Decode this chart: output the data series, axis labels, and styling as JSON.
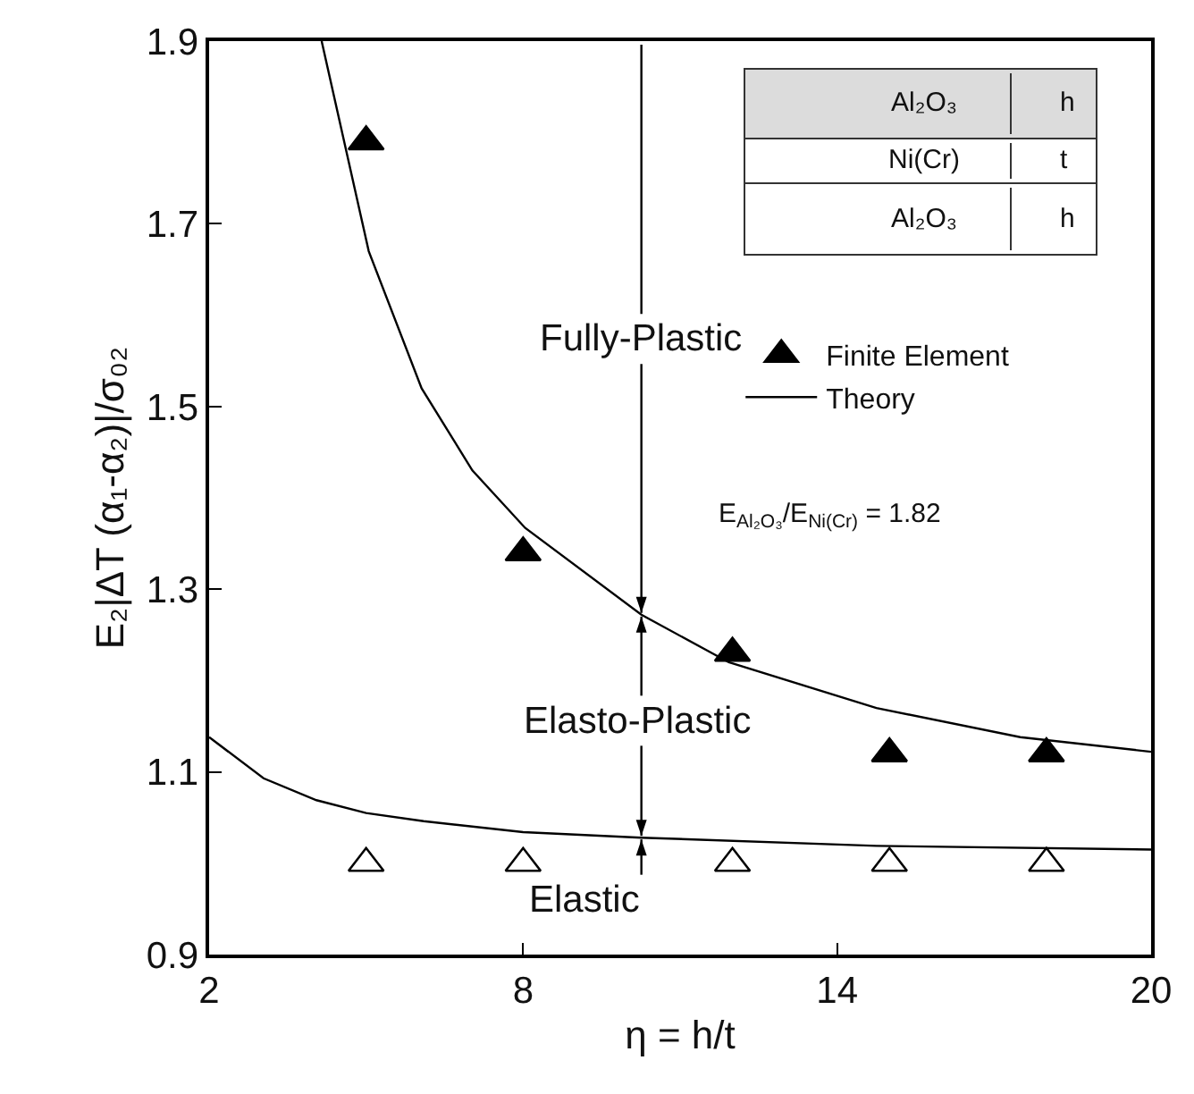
{
  "chart_data": {
    "type": "scatter",
    "xlabel": "η = h/t",
    "ylabel": "E₂|ΔT (α₁-α₂)|/σ₀₂",
    "xlim": [
      2,
      20
    ],
    "xticks": [
      2,
      8,
      14,
      20
    ],
    "ylim": [
      0.9,
      1.9
    ],
    "yticks": [
      0.9,
      1.1,
      1.3,
      1.5,
      1.7,
      1.9
    ],
    "grid": false,
    "legend": "right",
    "ref_lines": [
      {
        "axis": "x",
        "value": 10.26
      }
    ],
    "series": [
      {
        "name": "Finite Element",
        "color": "#000000",
        "marker": "triangle",
        "x": [
          5,
          8,
          12,
          15,
          18
        ],
        "values": [
          1.79,
          1.34,
          1.23,
          1.12,
          1.12
        ]
      },
      {
        "color": "#ffffff",
        "marker": "triangle",
        "x": [
          5,
          8,
          12,
          15,
          18
        ],
        "values": [
          1.0,
          1.0,
          1.0,
          1.0,
          1.0
        ]
      },
      {
        "type": "line",
        "name": "Theory",
        "color": "#000000",
        "line_style": "solid",
        "x": [
          4.15,
          5.05,
          6.06,
          7.03,
          8.04,
          10.26,
          11.93,
          14.75,
          17.5,
          20
        ],
        "values": [
          1.9,
          1.67,
          1.52,
          1.43,
          1.367,
          1.272,
          1.22,
          1.17,
          1.138,
          1.122
        ]
      },
      {
        "type": "line",
        "color": "#000000",
        "line_style": "solid",
        "x": [
          2,
          3.04,
          4.05,
          5.0,
          6.1,
          8.0,
          10.26,
          14.75,
          20
        ],
        "values": [
          1.138,
          1.093,
          1.069,
          1.055,
          1.046,
          1.034,
          1.028,
          1.019,
          1.015
        ]
      }
    ],
    "annotations": [
      "Fully-Plastic",
      "Elasto-Plastic",
      "Elastic",
      "E$_{Al₂O₃}$/E$_{Ni(Cr)}$ = 1.82",
      "Al₂O₃",
      "Ni(Cr)",
      "Al₂O₃",
      "h",
      "t",
      "h"
    ]
  }
}
